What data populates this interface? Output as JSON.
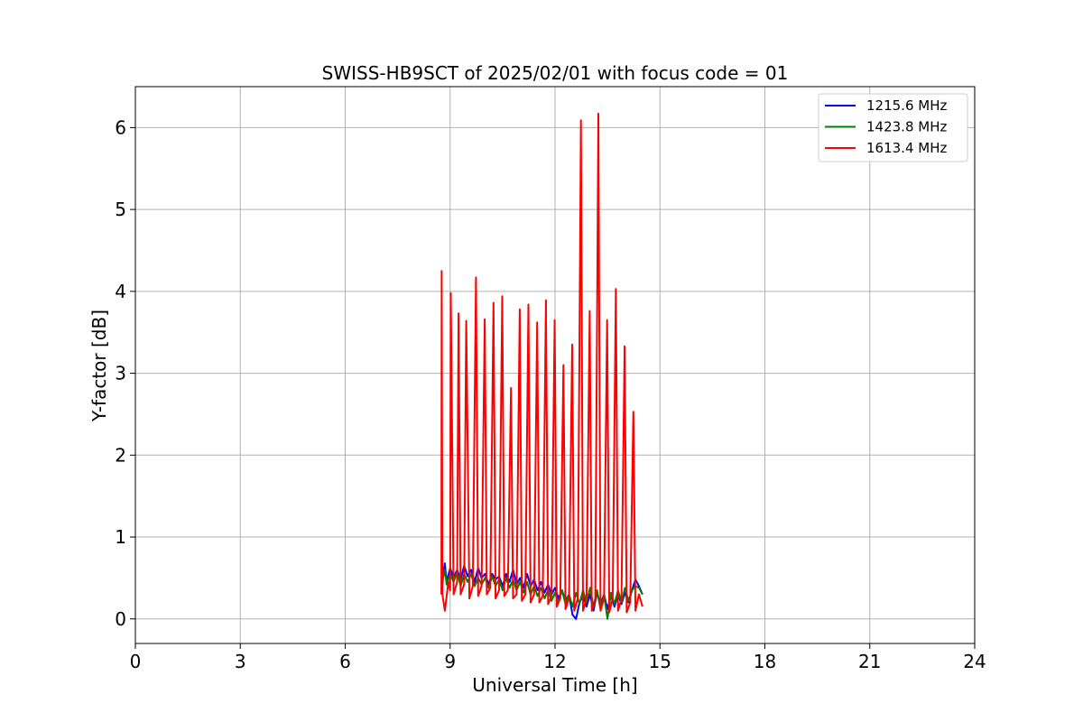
{
  "chart_data": {
    "type": "line",
    "title": "SWISS-HB9SCT of 2025/02/01 with focus code = 01",
    "xlabel": "Universal Time [h]",
    "ylabel": "Y-factor [dB]",
    "xlim": [
      0,
      24
    ],
    "ylim": [
      -0.3,
      6.5
    ],
    "xticks": [
      0,
      3,
      6,
      9,
      12,
      15,
      18,
      21,
      24
    ],
    "yticks": [
      0,
      1,
      2,
      3,
      4,
      5,
      6
    ],
    "grid": true,
    "legend_position": "top-right",
    "series": [
      {
        "name": "1215.6 MHz",
        "color": "#0000ff",
        "x": [
          8.75,
          8.8,
          8.85,
          8.9,
          9.0,
          9.1,
          9.2,
          9.3,
          9.4,
          9.5,
          9.6,
          9.7,
          9.8,
          9.9,
          10.0,
          10.1,
          10.2,
          10.3,
          10.4,
          10.5,
          10.6,
          10.7,
          10.8,
          10.9,
          11.0,
          11.1,
          11.2,
          11.3,
          11.4,
          11.5,
          11.6,
          11.7,
          11.8,
          11.9,
          12.0,
          12.1,
          12.2,
          12.3,
          12.4,
          12.5,
          12.6,
          12.7,
          12.8,
          12.9,
          13.0,
          13.1,
          13.2,
          13.3,
          13.4,
          13.5,
          13.6,
          13.7,
          13.8,
          13.9,
          14.0,
          14.1,
          14.2,
          14.3,
          14.4,
          14.5
        ],
        "y": [
          0.35,
          0.55,
          0.68,
          0.45,
          0.62,
          0.5,
          0.6,
          0.48,
          0.65,
          0.52,
          0.6,
          0.45,
          0.62,
          0.5,
          0.55,
          0.42,
          0.55,
          0.48,
          0.52,
          0.4,
          0.55,
          0.45,
          0.6,
          0.42,
          0.5,
          0.38,
          0.55,
          0.4,
          0.48,
          0.35,
          0.45,
          0.32,
          0.42,
          0.3,
          0.38,
          0.25,
          0.35,
          0.22,
          0.3,
          0.05,
          0.0,
          0.2,
          0.28,
          0.15,
          0.3,
          0.1,
          0.32,
          0.18,
          0.3,
          0.12,
          0.28,
          0.15,
          0.3,
          0.18,
          0.32,
          0.2,
          0.35,
          0.48,
          0.4,
          0.3
        ]
      },
      {
        "name": "1423.8 MHz",
        "color": "#008000",
        "x": [
          8.75,
          8.8,
          8.85,
          8.9,
          9.0,
          9.1,
          9.2,
          9.3,
          9.4,
          9.5,
          9.6,
          9.7,
          9.8,
          9.9,
          10.0,
          10.1,
          10.2,
          10.3,
          10.4,
          10.5,
          10.6,
          10.7,
          10.8,
          10.9,
          11.0,
          11.1,
          11.2,
          11.3,
          11.4,
          11.5,
          11.6,
          11.7,
          11.8,
          11.9,
          12.0,
          12.1,
          12.2,
          12.3,
          12.4,
          12.5,
          12.6,
          12.7,
          12.8,
          12.9,
          13.0,
          13.1,
          13.2,
          13.3,
          13.4,
          13.5,
          13.6,
          13.7,
          13.8,
          13.9,
          14.0,
          14.1,
          14.2,
          14.3,
          14.4,
          14.5
        ],
        "y": [
          0.3,
          0.5,
          0.6,
          0.42,
          0.55,
          0.45,
          0.58,
          0.4,
          0.55,
          0.45,
          0.55,
          0.4,
          0.5,
          0.42,
          0.5,
          0.38,
          0.52,
          0.4,
          0.48,
          0.35,
          0.5,
          0.38,
          0.48,
          0.35,
          0.45,
          0.32,
          0.45,
          0.3,
          0.4,
          0.28,
          0.38,
          0.25,
          0.35,
          0.22,
          0.32,
          0.2,
          0.35,
          0.18,
          0.3,
          0.15,
          0.32,
          0.18,
          0.35,
          0.2,
          0.38,
          0.15,
          0.35,
          0.12,
          0.3,
          0.0,
          0.32,
          0.18,
          0.35,
          0.2,
          0.38,
          0.22,
          0.35,
          0.4,
          0.38,
          0.3
        ]
      },
      {
        "name": "1613.4 MHz",
        "color": "#ff0000",
        "x": [
          8.75,
          8.76,
          8.78,
          8.85,
          8.95,
          9.0,
          9.02,
          9.1,
          9.2,
          9.24,
          9.3,
          9.4,
          9.46,
          9.55,
          9.65,
          9.74,
          9.8,
          9.9,
          9.99,
          10.05,
          10.15,
          10.24,
          10.3,
          10.4,
          10.49,
          10.55,
          10.65,
          10.74,
          10.8,
          10.9,
          10.99,
          11.05,
          11.15,
          11.24,
          11.3,
          11.4,
          11.49,
          11.55,
          11.65,
          11.74,
          11.8,
          11.9,
          11.99,
          12.05,
          12.15,
          12.24,
          12.3,
          12.4,
          12.49,
          12.55,
          12.65,
          12.74,
          12.8,
          12.9,
          12.99,
          13.05,
          13.15,
          13.24,
          13.3,
          13.4,
          13.49,
          13.55,
          13.65,
          13.74,
          13.8,
          13.9,
          13.99,
          14.05,
          14.15,
          14.24,
          14.3,
          14.4,
          14.5
        ],
        "y": [
          0.3,
          4.25,
          0.3,
          0.1,
          0.45,
          0.35,
          3.98,
          0.3,
          0.45,
          3.73,
          0.3,
          0.42,
          3.64,
          0.25,
          0.4,
          4.17,
          0.28,
          0.4,
          3.66,
          0.3,
          0.38,
          3.86,
          0.25,
          0.35,
          3.94,
          0.28,
          0.35,
          2.82,
          0.25,
          0.3,
          3.78,
          0.22,
          0.3,
          3.84,
          0.2,
          0.3,
          3.62,
          0.2,
          0.28,
          3.89,
          0.18,
          0.28,
          3.65,
          0.15,
          0.25,
          3.1,
          0.12,
          0.25,
          3.35,
          0.1,
          0.25,
          6.09,
          0.1,
          0.25,
          3.76,
          0.1,
          0.22,
          6.17,
          0.1,
          0.25,
          3.65,
          0.08,
          0.25,
          4.03,
          0.1,
          0.25,
          3.33,
          0.08,
          0.2,
          2.53,
          0.1,
          0.3,
          0.15
        ]
      }
    ]
  }
}
